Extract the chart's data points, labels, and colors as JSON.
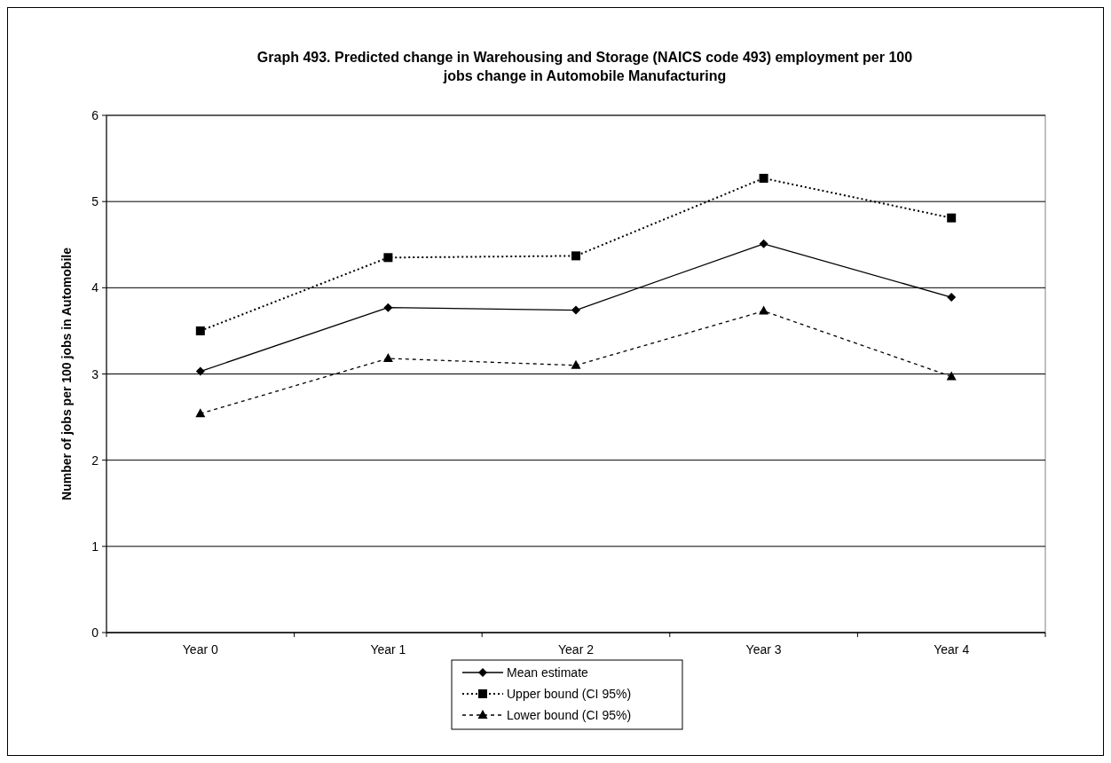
{
  "chart_data": {
    "type": "line",
    "title": "Graph 493.  Predicted change in Warehousing and Storage (NAICS code 493) employment per 100 jobs change in Automobile Manufacturing",
    "ylabel": "Number of jobs per 100 jobs in Automobile",
    "categories": [
      "Year 0",
      "Year 1",
      "Year 2",
      "Year 3",
      "Year 4"
    ],
    "series": [
      {
        "name": "Mean estimate",
        "color": "#000000",
        "marker": "diamond",
        "line_style": "solid",
        "values": [
          3.03,
          3.77,
          3.74,
          4.51,
          3.89
        ]
      },
      {
        "name": "Upper bound (CI 95%)",
        "color": "#000000",
        "marker": "square",
        "line_style": "dotted",
        "values": [
          3.5,
          4.35,
          4.37,
          5.27,
          4.81
        ]
      },
      {
        "name": "Lower bound (CI 95%)",
        "color": "#000000",
        "marker": "triangle",
        "line_style": "dashed",
        "values": [
          2.54,
          3.18,
          3.1,
          3.73,
          2.97
        ]
      }
    ],
    "ylim": [
      0,
      6
    ],
    "yticks": [
      0,
      1,
      2,
      3,
      4,
      5,
      6
    ],
    "grid": "y",
    "legend": "bottom"
  }
}
